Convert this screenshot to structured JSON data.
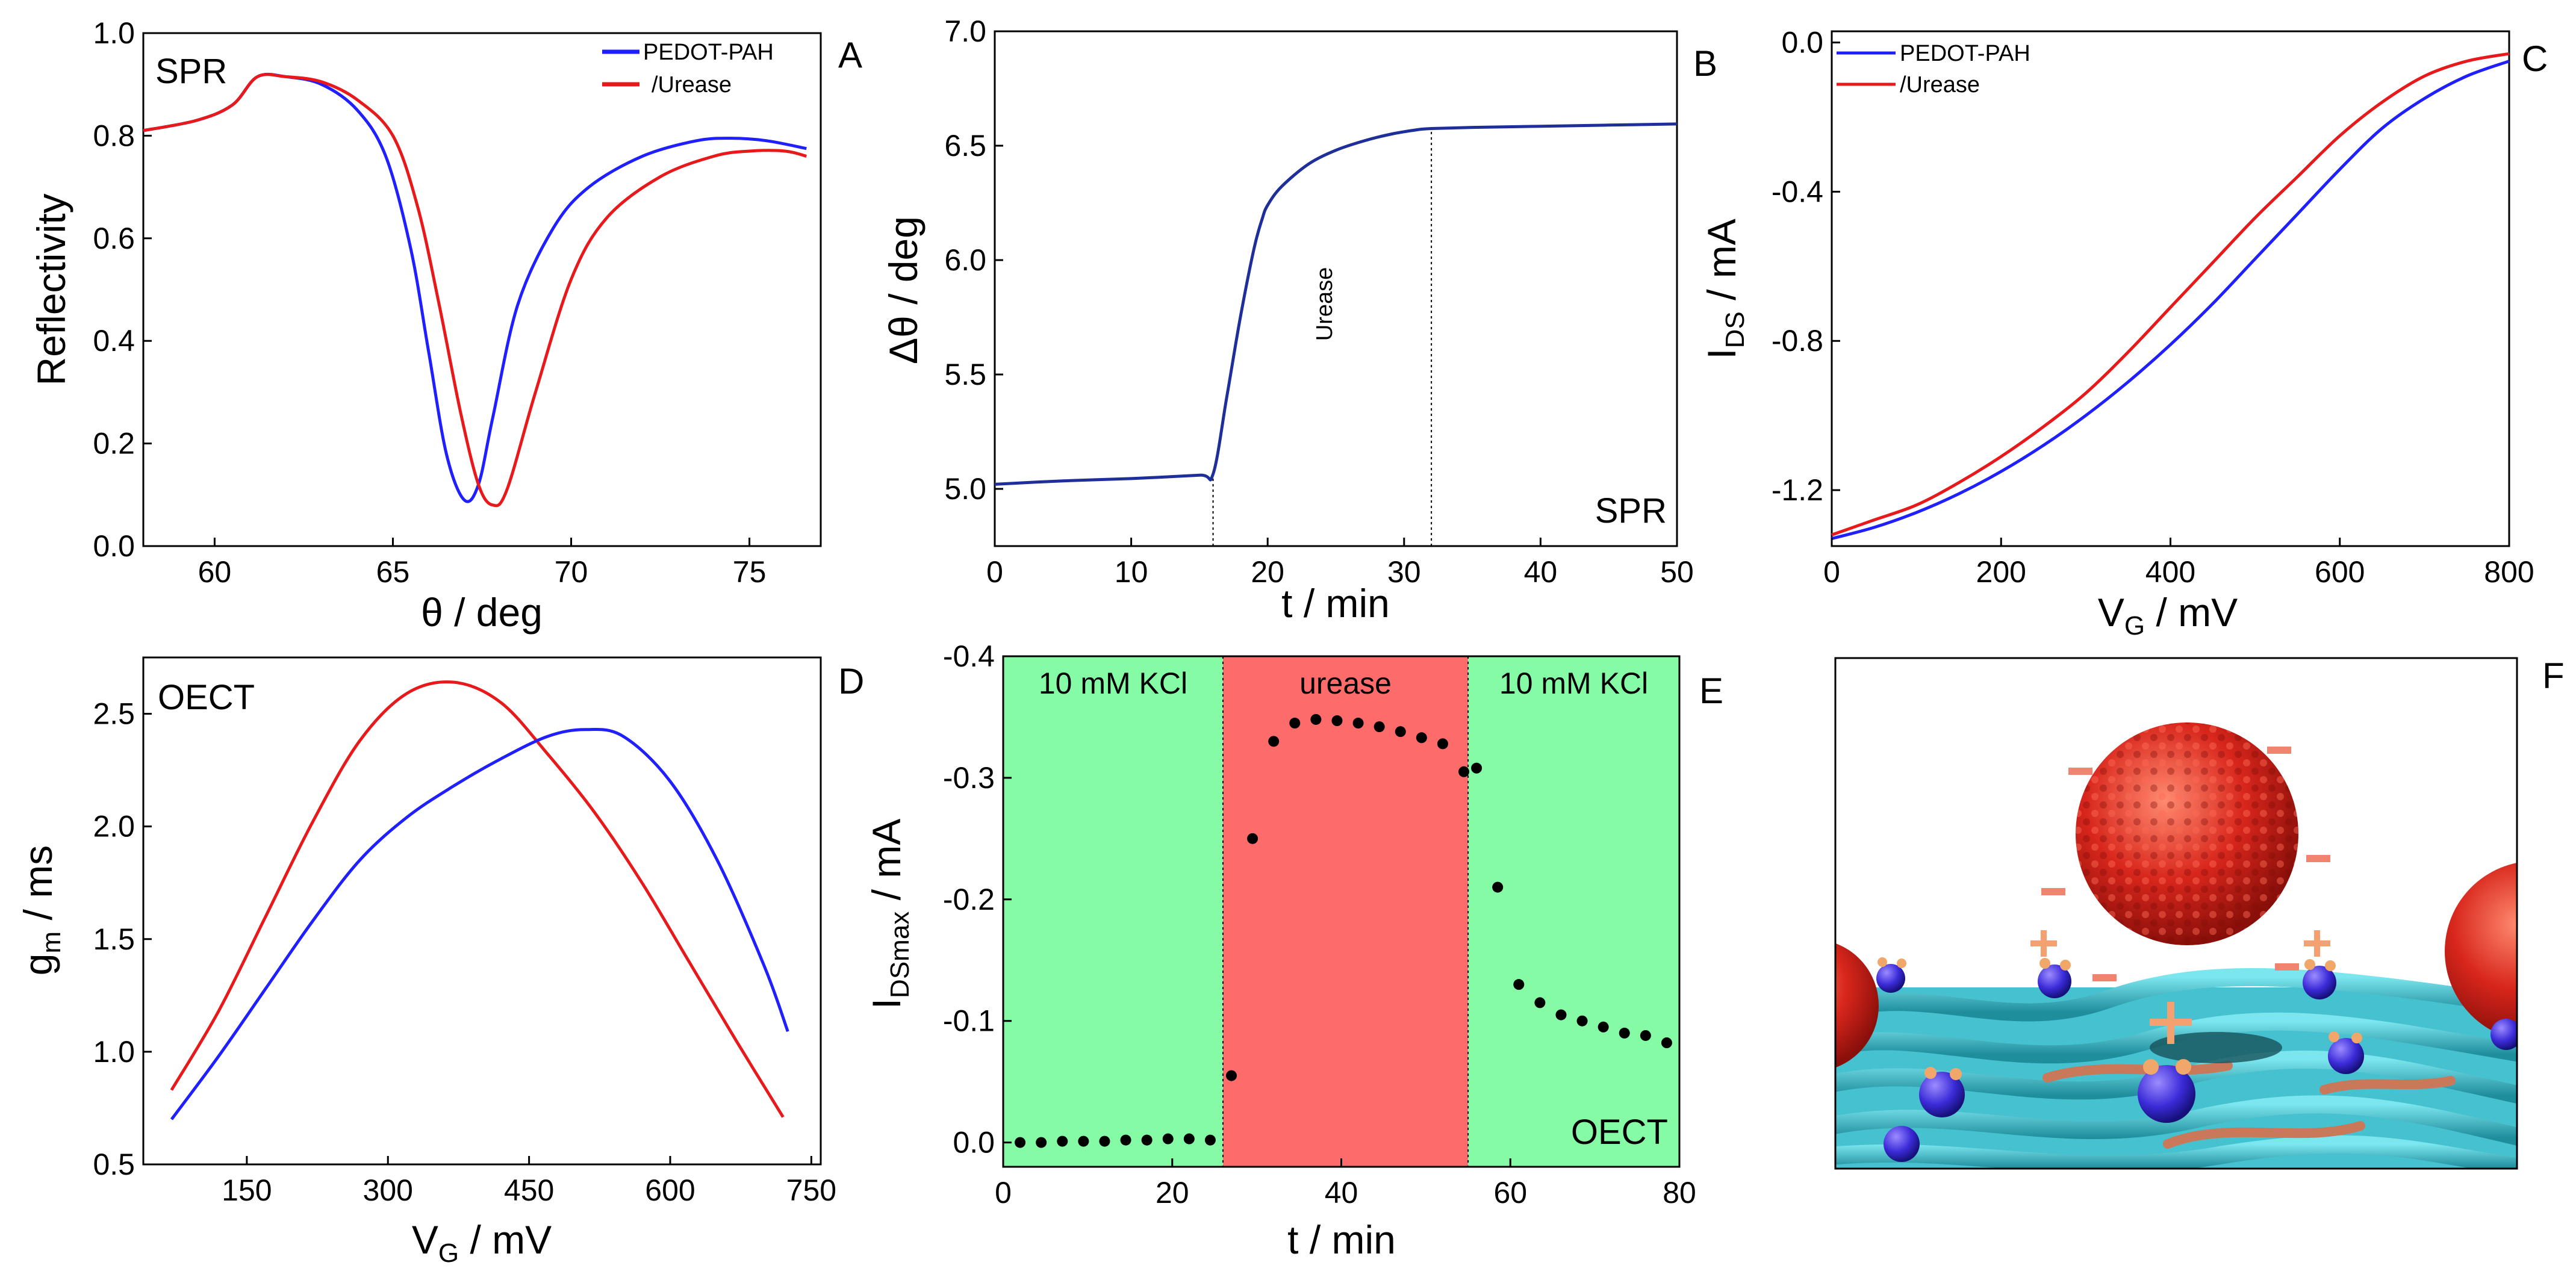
{
  "chart_data": [
    {
      "id": "A",
      "panel_letter": "A",
      "type": "line",
      "label": "SPR",
      "xlabel": "θ / deg",
      "ylabel": "Reflectivity",
      "xlim": [
        58,
        77
      ],
      "ylim": [
        0,
        1.0
      ],
      "xticks": [
        60,
        65,
        70,
        75
      ],
      "yticks": [
        0.0,
        0.2,
        0.4,
        0.6,
        0.8,
        1.0
      ],
      "ytick_decimals": 1,
      "legend_position": "top-right",
      "series": [
        {
          "name": "PEDOT-PAH",
          "color": "#1f1fff",
          "x": [
            58.0,
            59.5,
            60.5,
            61.2,
            62.0,
            63.0,
            64.0,
            64.8,
            65.5,
            66.0,
            66.5,
            67.0,
            67.4,
            67.8,
            68.5,
            69.5,
            70.5,
            72.0,
            73.5,
            74.5,
            75.5,
            76.6
          ],
          "y": [
            0.81,
            0.83,
            0.86,
            0.915,
            0.915,
            0.9,
            0.85,
            0.76,
            0.58,
            0.38,
            0.18,
            0.09,
            0.12,
            0.25,
            0.47,
            0.62,
            0.7,
            0.76,
            0.79,
            0.795,
            0.79,
            0.775
          ]
        },
        {
          "name": "/Urease",
          "color": "#e8191b",
          "x": [
            58.0,
            59.5,
            60.5,
            61.2,
            62.0,
            63.0,
            64.0,
            65.0,
            65.7,
            66.3,
            66.9,
            67.4,
            67.8,
            68.2,
            69.0,
            70.0,
            71.0,
            72.5,
            74.0,
            75.0,
            76.0,
            76.6
          ],
          "y": [
            0.81,
            0.83,
            0.86,
            0.915,
            0.915,
            0.905,
            0.87,
            0.8,
            0.66,
            0.47,
            0.26,
            0.12,
            0.08,
            0.11,
            0.3,
            0.52,
            0.64,
            0.72,
            0.76,
            0.77,
            0.77,
            0.76
          ]
        }
      ]
    },
    {
      "id": "B",
      "panel_letter": "B",
      "type": "line",
      "label": "SPR",
      "annotation": "Urease",
      "xlabel": "t / min",
      "ylabel": "Δθ / deg",
      "xlim": [
        0,
        50
      ],
      "ylim": [
        4.75,
        7.0
      ],
      "xticks": [
        0,
        10,
        20,
        30,
        40,
        50
      ],
      "yticks": [
        5.0,
        5.5,
        6.0,
        6.5,
        7.0
      ],
      "ytick_decimals": 1,
      "vlines": [
        16,
        32
      ],
      "series": [
        {
          "name": "Δθ",
          "color": "#1f2f9a",
          "x": [
            0,
            5,
            10,
            15,
            16,
            17,
            18,
            19,
            19.6,
            20,
            21,
            23,
            25,
            27,
            29,
            31,
            32,
            35,
            40,
            45,
            50
          ],
          "y": [
            5.02,
            5.035,
            5.045,
            5.06,
            5.065,
            5.4,
            5.75,
            6.05,
            6.18,
            6.24,
            6.32,
            6.42,
            6.48,
            6.52,
            6.55,
            6.57,
            6.575,
            6.58,
            6.585,
            6.59,
            6.595
          ]
        }
      ]
    },
    {
      "id": "C",
      "panel_letter": "C",
      "type": "line",
      "xlabel": "V",
      "xlabel_sub": "G",
      "xlabel_unit": " / mV",
      "ylabel": "I",
      "ylabel_sub": "DS",
      "ylabel_unit": " / mA",
      "xlim": [
        0,
        800
      ],
      "ylim": [
        -1.35,
        0.03
      ],
      "xticks": [
        0,
        200,
        400,
        600,
        800
      ],
      "yticks": [
        0.0,
        -0.4,
        -0.8,
        -1.2
      ],
      "ytick_decimals": 1,
      "legend_position": "top-left",
      "series": [
        {
          "name": "PEDOT-PAH",
          "color": "#1f1fff",
          "x": [
            0,
            50,
            100,
            150,
            200,
            250,
            300,
            350,
            400,
            450,
            500,
            550,
            600,
            650,
            700,
            750,
            800
          ],
          "y": [
            -1.33,
            -1.3,
            -1.26,
            -1.21,
            -1.15,
            -1.08,
            -1.0,
            -0.91,
            -0.81,
            -0.7,
            -0.58,
            -0.46,
            -0.34,
            -0.23,
            -0.15,
            -0.09,
            -0.05
          ]
        },
        {
          "name": "/Urease",
          "color": "#e8191b",
          "x": [
            0,
            50,
            100,
            150,
            200,
            250,
            300,
            350,
            400,
            450,
            500,
            550,
            600,
            650,
            700,
            750,
            800
          ],
          "y": [
            -1.32,
            -1.28,
            -1.24,
            -1.18,
            -1.11,
            -1.03,
            -0.94,
            -0.83,
            -0.71,
            -0.59,
            -0.47,
            -0.36,
            -0.25,
            -0.16,
            -0.09,
            -0.05,
            -0.03
          ]
        }
      ]
    },
    {
      "id": "D",
      "panel_letter": "D",
      "type": "line",
      "label": "OECT",
      "xlabel": "V",
      "xlabel_sub": "G",
      "xlabel_unit": " / mV",
      "ylabel": "g",
      "ylabel_sub": "m",
      "ylabel_unit": " / ms",
      "xlim": [
        40,
        760
      ],
      "ylim": [
        0.5,
        2.75
      ],
      "xticks": [
        150,
        300,
        450,
        600,
        750
      ],
      "yticks": [
        0.5,
        1.0,
        1.5,
        2.0,
        2.5
      ],
      "ytick_decimals": 1,
      "series": [
        {
          "name": "/Urease",
          "color": "#e8191b",
          "x": [
            70,
            120,
            170,
            220,
            270,
            320,
            370,
            420,
            470,
            520,
            570,
            620,
            670,
            720
          ],
          "y": [
            0.83,
            1.18,
            1.6,
            2.02,
            2.38,
            2.59,
            2.64,
            2.55,
            2.32,
            2.06,
            1.75,
            1.4,
            1.05,
            0.71
          ]
        },
        {
          "name": "PEDOT-PAH",
          "color": "#1f1fff",
          "x": [
            70,
            120,
            170,
            220,
            270,
            320,
            370,
            420,
            470,
            510,
            550,
            600,
            650,
            700,
            725
          ],
          "y": [
            0.7,
            0.98,
            1.28,
            1.58,
            1.85,
            2.04,
            2.18,
            2.3,
            2.4,
            2.43,
            2.4,
            2.2,
            1.85,
            1.38,
            1.09
          ]
        }
      ]
    },
    {
      "id": "E",
      "panel_letter": "E",
      "type": "scatter",
      "label": "OECT",
      "xlabel": "t / min",
      "ylabel": "I",
      "ylabel_sub": "DSmax",
      "ylabel_unit": " / mA",
      "xlim": [
        0,
        80
      ],
      "ylim": [
        0.02,
        -0.4
      ],
      "xticks": [
        0,
        20,
        40,
        60,
        80
      ],
      "yticks": [
        0.0,
        -0.1,
        -0.2,
        -0.3,
        -0.4
      ],
      "ytick_decimals": 1,
      "regions": [
        {
          "label": "10 mM KCl",
          "x0": 0,
          "x1": 26,
          "color": "#86fba6"
        },
        {
          "label": "urease",
          "x0": 26,
          "x1": 55,
          "color": "#fe6b6b"
        },
        {
          "label": "10 mM KCl",
          "x0": 55,
          "x1": 80,
          "color": "#86fba6"
        }
      ],
      "series": [
        {
          "name": "I_DSmax",
          "color": "#000000",
          "x": [
            2,
            4.5,
            7,
            9.5,
            12,
            14.5,
            17,
            19.5,
            22,
            24.5,
            27,
            29.5,
            32,
            34.5,
            37,
            39.5,
            42,
            44.5,
            47,
            49.5,
            52,
            54.5,
            56,
            58.5,
            61,
            63.5,
            66,
            68.5,
            71,
            73.5,
            76,
            78.5
          ],
          "y": [
            0.0,
            0.0,
            -0.001,
            -0.001,
            -0.001,
            -0.002,
            -0.002,
            -0.003,
            -0.003,
            -0.002,
            -0.055,
            -0.25,
            -0.33,
            -0.345,
            -0.348,
            -0.347,
            -0.345,
            -0.342,
            -0.338,
            -0.333,
            -0.328,
            -0.305,
            -0.308,
            -0.21,
            -0.13,
            -0.115,
            -0.105,
            -0.1,
            -0.095,
            -0.09,
            -0.088,
            -0.082
          ]
        }
      ]
    }
  ],
  "panel_f": {
    "letter": "F"
  }
}
